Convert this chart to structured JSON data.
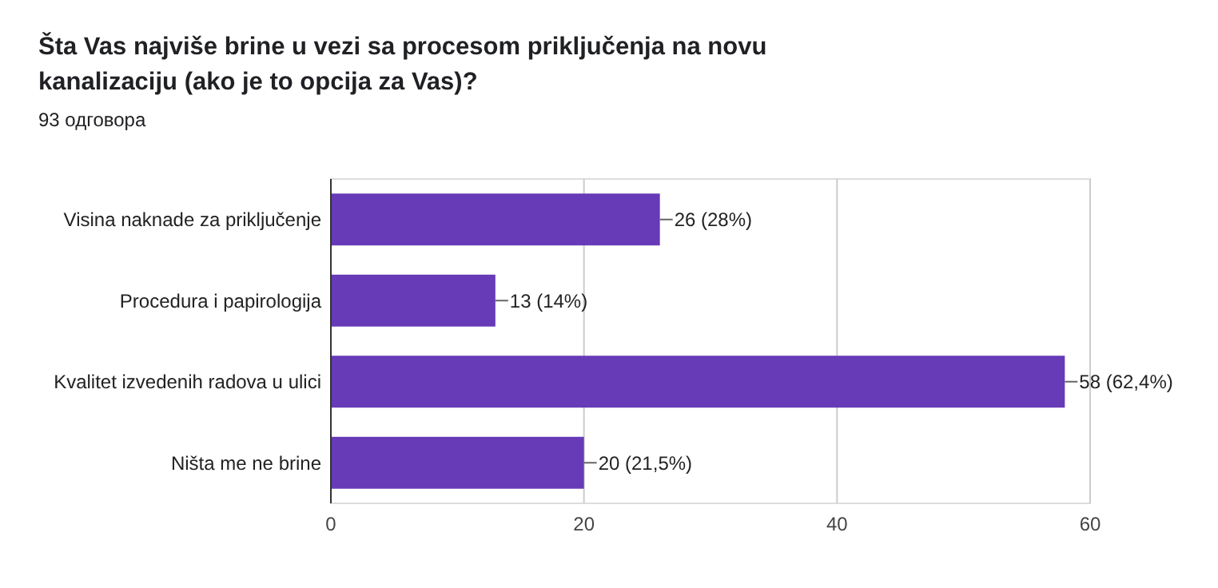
{
  "chart_data": {
    "type": "bar",
    "orientation": "horizontal",
    "title": "Šta Vas najviše brine u vezi sa procesom priključenja na novu kanalizaciju (ako je to opcija za Vas)?",
    "subtitle": "93 одговора",
    "categories": [
      "Visina naknade za priključenje",
      "Procedura i papirologija",
      "Kvalitet izvedenih radova u ulici",
      "Ništa me ne brine"
    ],
    "values": [
      26,
      13,
      58,
      20
    ],
    "value_labels": [
      "26 (28%)",
      "13 (14%)",
      "58 (62,4%)",
      "20 (21,5%)"
    ],
    "color": "#673ab7",
    "xlim": [
      0,
      60
    ],
    "xticks": [
      0,
      20,
      40,
      60
    ],
    "grid": "x"
  }
}
